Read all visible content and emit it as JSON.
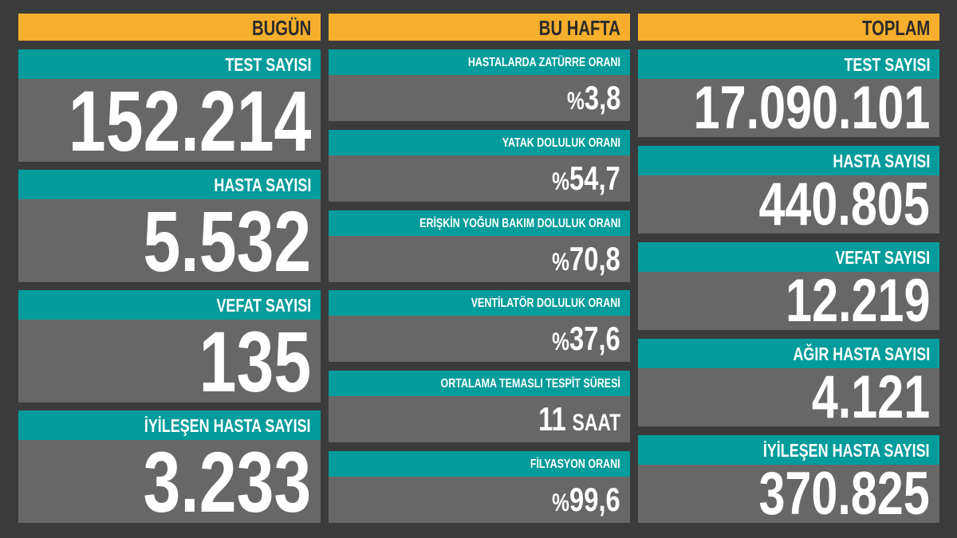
{
  "colors": {
    "background": "#3b3b3b",
    "header": "#f6ae2d",
    "label_bar": "#039c9c",
    "value_box": "#676767"
  },
  "columns": [
    {
      "title": "BUGÜN",
      "panels": [
        {
          "label": "TEST SAYISI",
          "value": "152.214"
        },
        {
          "label": "HASTA SAYISI",
          "value": "5.532"
        },
        {
          "label": "VEFAT SAYISI",
          "value": "135"
        },
        {
          "label": "İYİLEŞEN HASTA SAYISI",
          "value": "3.233"
        }
      ]
    },
    {
      "title": "BU HAFTA",
      "panels": [
        {
          "label": "HASTALARDA ZATÜRRE ORANI",
          "prefix": "%",
          "value": "3,8"
        },
        {
          "label": "YATAK DOLULUK ORANI",
          "prefix": "%",
          "value": "54,7"
        },
        {
          "label": "ERİŞKİN YOĞUN BAKIM DOLULUK ORANI",
          "prefix": "%",
          "value": "70,8"
        },
        {
          "label": "VENTİLATÖR DOLULUK ORANI",
          "prefix": "%",
          "value": "37,6"
        },
        {
          "label": "ORTALAMA TEMASLI TESPİT SÜRESİ",
          "value": "11",
          "unit": "SAAT"
        },
        {
          "label": "FİLYASYON ORANI",
          "prefix": "%",
          "value": "99,6"
        }
      ]
    },
    {
      "title": "TOPLAM",
      "panels": [
        {
          "label": "TEST SAYISI",
          "value": "17.090.101"
        },
        {
          "label": "HASTA SAYISI",
          "value": "440.805"
        },
        {
          "label": "VEFAT SAYISI",
          "value": "12.219"
        },
        {
          "label": "AĞIR HASTA SAYISI",
          "value": "4.121"
        },
        {
          "label": "İYİLEŞEN HASTA SAYISI",
          "value": "370.825"
        }
      ]
    }
  ]
}
